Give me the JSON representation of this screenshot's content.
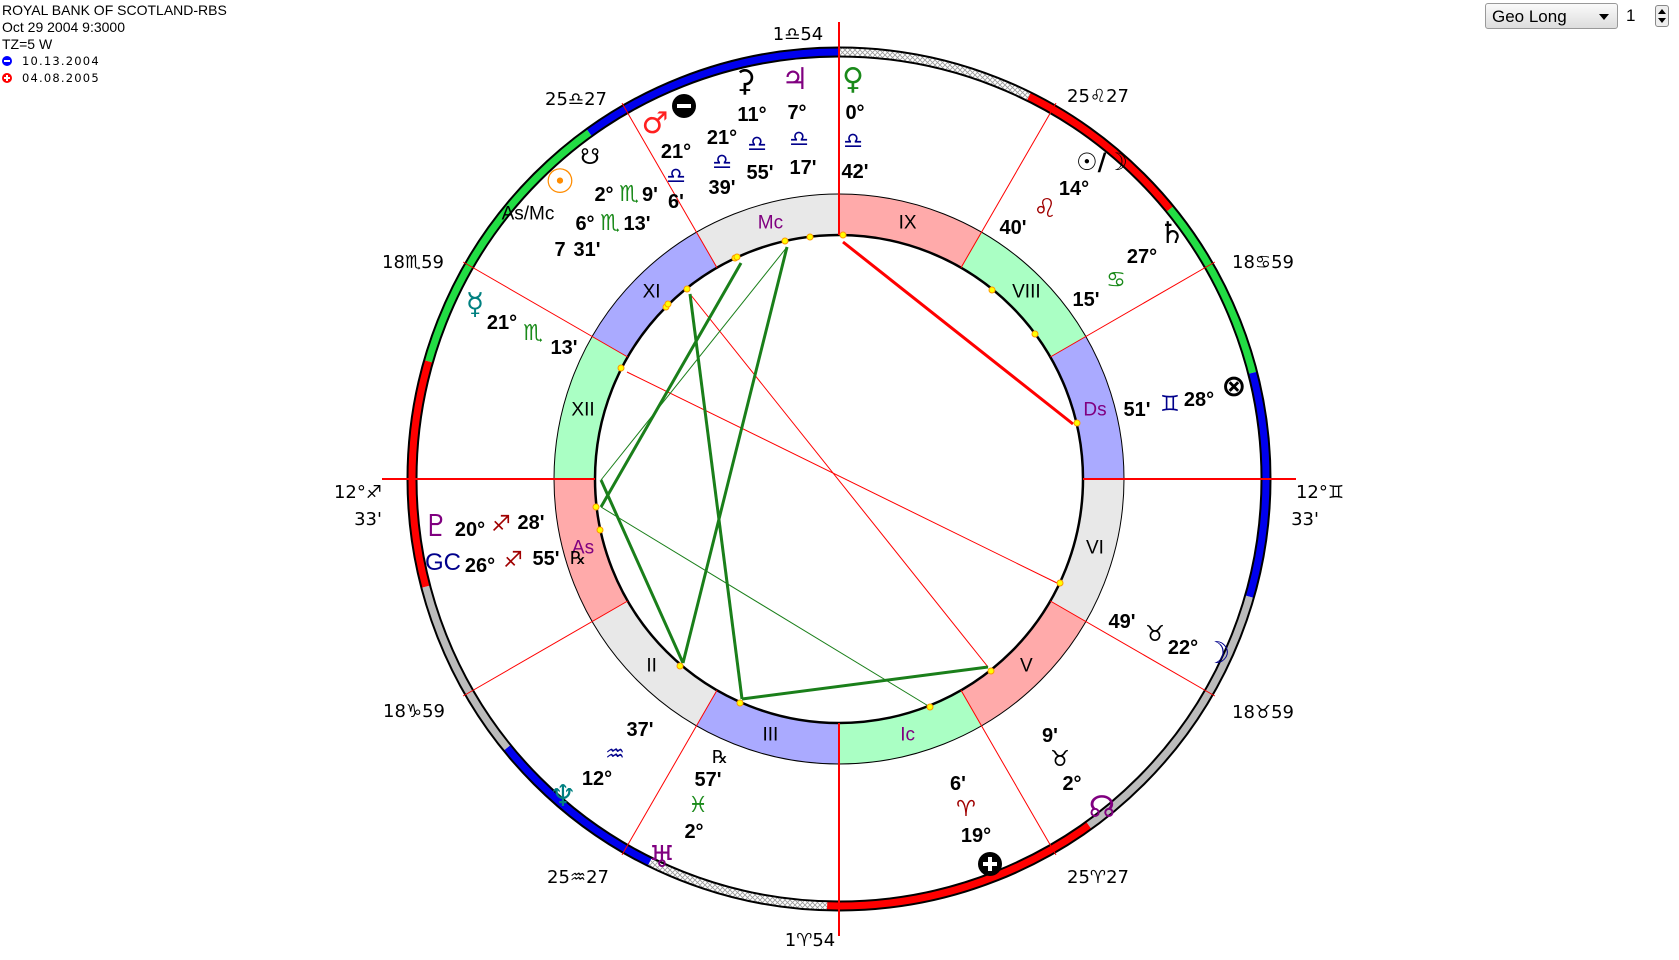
{
  "header": {
    "title": "ROYAL BANK OF SCOTLAND-RBS",
    "datetime": "Oct 29 2004 9:3000",
    "tz": "TZ=5 W"
  },
  "legend": [
    {
      "date": "10.13.2004",
      "color": "#0000ff",
      "icon": "minus-circle-icon"
    },
    {
      "date": "04.08.2005",
      "color": "#ff0000",
      "icon": "plus-circle-icon"
    }
  ],
  "controls": {
    "coordinate_select": "Geo Long",
    "spinner_value": "1"
  },
  "colors": {
    "axis": "#ff0000",
    "aspect_hard": "#ff0000",
    "aspect_soft": "#1a7f1a",
    "ring_red": "#ff0000",
    "ring_green": "#22dd44",
    "ring_blue": "#0000ee",
    "ring_gray": "#bbbbbb",
    "house_pink": "#ffaaaa",
    "house_green": "#aaffc4",
    "house_blue": "#aaaaff",
    "house_gray": "#e8e8e8"
  },
  "cusps": {
    "mc": "1♎54",
    "c11": "25♎27",
    "c12": "18♏59",
    "asc_deg": "12°♐",
    "asc_min": "33'",
    "c2": "18♑59",
    "c3": "25♒27",
    "ic": "1♈54",
    "c5": "25♈27",
    "c6": "18♉59",
    "dsc_deg": "12°♊",
    "dsc_min": "33'",
    "c8": "18♋59",
    "c9": "25♌27"
  },
  "houses": [
    "As",
    "II",
    "III",
    "Ic",
    "V",
    "VI",
    "Ds",
    "VIII",
    "IX",
    "Mc",
    "XI",
    "XII"
  ],
  "planets": {
    "venus": {
      "glyph": "♀",
      "deg": "0°",
      "sign": "♎",
      "min": "42'"
    },
    "jupiter": {
      "glyph": "♃",
      "deg": "7°",
      "sign": "♎",
      "min": "17'"
    },
    "ceres": {
      "glyph": "⚳",
      "deg": "11°",
      "sign": "♎",
      "min": "55'"
    },
    "mars": {
      "glyph": "♂",
      "deg": "21°",
      "sign": "♎",
      "min": "6'"
    },
    "marker_minus": {
      "deg": "21°",
      "sign": "♎",
      "min": "39'"
    },
    "south_node": {
      "glyph": "☋",
      "deg": "2°",
      "sign": "♏",
      "min": "9'"
    },
    "sun": {
      "glyph": "☉",
      "deg": "6°",
      "sign": "♏",
      "min": "13'"
    },
    "as_mc": {
      "glyph": "As/Mc",
      "deg": "7",
      "min": "31'"
    },
    "mercury": {
      "glyph": "☿",
      "deg": "21°",
      "sign": "♏",
      "min": "13'"
    },
    "pluto": {
      "glyph": "♇",
      "deg": "20°",
      "sign": "♐",
      "min": "28'"
    },
    "gc": {
      "glyph": "GC",
      "deg": "26°",
      "sign": "♐",
      "min": "55'",
      "retro": "℞"
    },
    "sun_moon": {
      "glyph": "☉/☽",
      "deg": "14°",
      "sign": "♌",
      "min": "40'"
    },
    "saturn": {
      "glyph": "♄",
      "deg": "27°",
      "sign": "♋",
      "min": "15'"
    },
    "fortune": {
      "glyph": "⊗",
      "deg": "28°",
      "sign": "♊",
      "min": "51'"
    },
    "moon": {
      "glyph": "☽",
      "deg": "22°",
      "sign": "♉",
      "min": "49'"
    },
    "north_node": {
      "glyph": "☊",
      "deg": "2°",
      "sign": "♉",
      "min": "9'"
    },
    "marker_plus": {
      "deg": "19°",
      "sign": "♈",
      "min": "6'"
    },
    "uranus": {
      "glyph": "♅",
      "deg": "2°",
      "sign": "♓",
      "min": "57'",
      "retro": "℞"
    },
    "neptune": {
      "glyph": "♆",
      "deg": "12°",
      "sign": "♒",
      "min": "37'"
    }
  }
}
